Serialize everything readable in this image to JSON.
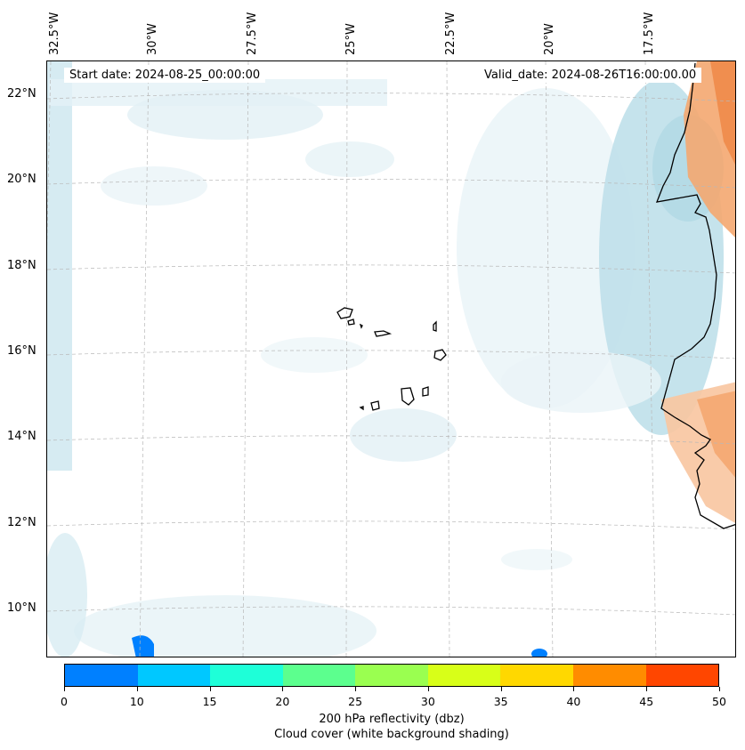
{
  "map": {
    "start_date": "Start date: 2024-08-25_00:00:00",
    "valid_date": "Valid_date: 2024-08-26T16:00:00.00",
    "lon_labels": [
      "32.5°W",
      "30°W",
      "27.5°W",
      "25°W",
      "22.5°W",
      "20°W",
      "17.5°W"
    ],
    "lat_labels": [
      "22°N",
      "20°N",
      "18°N",
      "16°N",
      "14°N",
      "12°N",
      "10°N"
    ]
  },
  "colorbar": {
    "colors": [
      "#0080ff",
      "#00c8ff",
      "#1effd8",
      "#5cff8e",
      "#9aff50",
      "#d8ff18",
      "#ffd800",
      "#ff8c00",
      "#ff4600"
    ],
    "ticks": [
      "0",
      "10",
      "15",
      "20",
      "25",
      "30",
      "35",
      "40",
      "45",
      "50"
    ],
    "title_line1": "200 hPa reflectivity (dbz)",
    "title_line2": "Cloud cover (white background shading)"
  }
}
